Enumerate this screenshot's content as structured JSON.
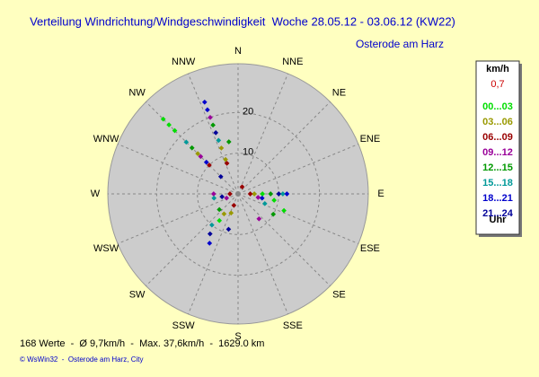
{
  "chart_data": {
    "type": "polar",
    "title": "Verteilung Windrichtung/Windgeschwindigkeit  Woche 28.05.12 - 03.06.12 (KW22)",
    "subtitle": "Osterode am Harz",
    "directions": [
      "N",
      "NNE",
      "NE",
      "ENE",
      "E",
      "ESE",
      "SE",
      "SSE",
      "S",
      "SSW",
      "SW",
      "WSW",
      "W",
      "WNW",
      "NW",
      "NNW"
    ],
    "rlim": [
      0,
      32
    ],
    "rticks": [
      10,
      20
    ],
    "legend_title": "km/h",
    "calm_label": "0,7",
    "legend_footer": "Uhr",
    "footer": "168 Werte  -  Ø 9,7km/h  -  Max. 37,6km/h  -  1629.0 km",
    "credit": "© WsWin32  -  Osterode am Harz, City",
    "series": [
      {
        "name": "00...03",
        "color": "#00dd00",
        "x": [
          315,
          315,
          315,
          100,
          110,
          90,
          215
        ],
        "values": [
          26,
          24,
          22,
          9,
          12,
          6,
          8
        ]
      },
      {
        "name": "03...06",
        "color": "#999900",
        "x": [
          340,
          340,
          315,
          90,
          215,
          200
        ],
        "values": [
          12,
          9,
          14,
          4,
          6,
          5
        ]
      },
      {
        "name": "06...09",
        "color": "#990000",
        "x": [
          340,
          315,
          270,
          90,
          200,
          30
        ],
        "values": [
          8,
          10,
          2,
          3,
          3,
          2
        ]
      },
      {
        "name": "09...12",
        "color": "#990099",
        "x": [
          340,
          315,
          270,
          140,
          100,
          250
        ],
        "values": [
          20,
          13,
          6,
          8,
          5,
          3
        ]
      },
      {
        "name": "12...15",
        "color": "#009900",
        "x": [
          315,
          340,
          350,
          90,
          120,
          230
        ],
        "values": [
          16,
          18,
          13,
          8,
          10,
          6
        ]
      },
      {
        "name": "15...18",
        "color": "#009999",
        "x": [
          315,
          340,
          90,
          110,
          260,
          220
        ],
        "values": [
          18,
          14,
          11,
          7,
          6,
          10
        ]
      },
      {
        "name": "18...21",
        "color": "#0000cc",
        "x": [
          340,
          340,
          315,
          90,
          100,
          210
        ],
        "values": [
          24,
          22,
          11,
          12,
          6,
          14
        ]
      },
      {
        "name": "21...24",
        "color": "#000099",
        "x": [
          340,
          315,
          90,
          260,
          215,
          195
        ],
        "values": [
          16,
          6,
          10,
          4,
          12,
          9
        ]
      }
    ]
  }
}
